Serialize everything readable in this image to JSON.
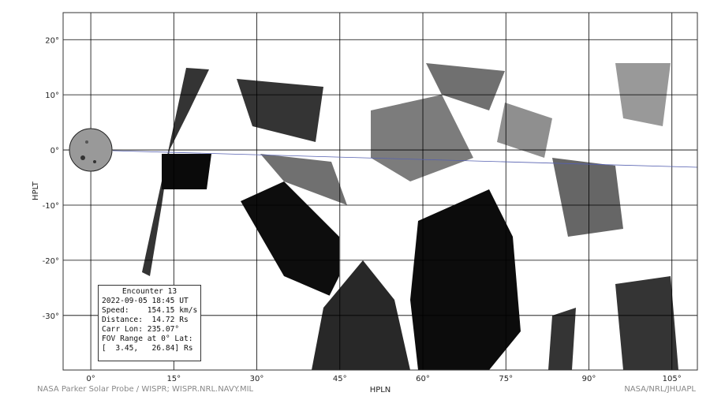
{
  "chart_data": {
    "type": "image",
    "xlabel": "HPLN",
    "ylabel": "HPLT",
    "xlim": [
      -5,
      109.6
    ],
    "ylim": [
      -39.9,
      24.9
    ],
    "grid": true,
    "x_ticks": [
      0,
      15,
      30,
      45,
      60,
      75,
      90,
      105
    ],
    "x_tick_labels": [
      "0°",
      "15°",
      "30°",
      "45°",
      "60°",
      "75°",
      "90°",
      "105°"
    ],
    "y_ticks": [
      20,
      10,
      0,
      -10,
      -20,
      -30
    ],
    "y_tick_labels": [
      "20°",
      "10°",
      "0°",
      "-10°",
      "-20°",
      "-30°"
    ],
    "sun_position": [
      0,
      0
    ],
    "colors": {
      "grid": "#000000",
      "ecliptic_line": "#5560b0",
      "image": "#000000"
    }
  },
  "info": {
    "title": "Encounter 13",
    "datetime": "2022-09-05 18:45 UT",
    "speed": "Speed:    154.15 km/s",
    "distance": "Distance:  14.72 Rs",
    "carr_lon": "Carr Lon: 235.07°",
    "fov_label": "FOV Range at 0° Lat:",
    "fov_range": "[  3.45,   26.84] Rs"
  },
  "footer": {
    "left": "NASA Parker Solar Probe / WISPR; WISPR.NRL.NAVY.MIL",
    "right": "NASA/NRL/JHUAPL"
  }
}
